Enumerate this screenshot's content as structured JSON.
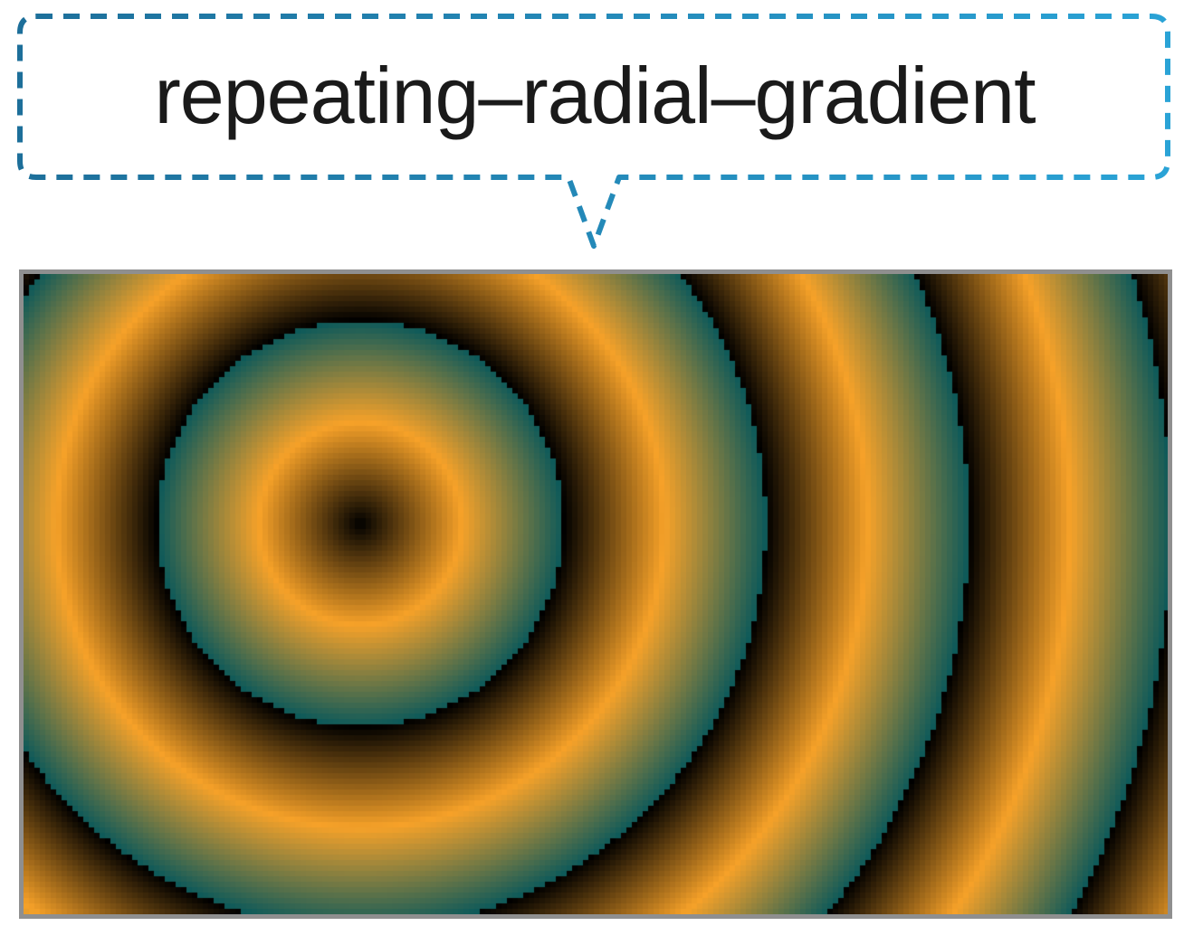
{
  "callout": {
    "label": "repeating–radial–gradient",
    "border_color": "#2aa3d6"
  },
  "swatch": {
    "gradient_type": "repeating-radial-gradient",
    "colors": [
      "#000000",
      "#f7a229",
      "#0e5a5a"
    ],
    "frame_color": "#8f8f8f"
  }
}
